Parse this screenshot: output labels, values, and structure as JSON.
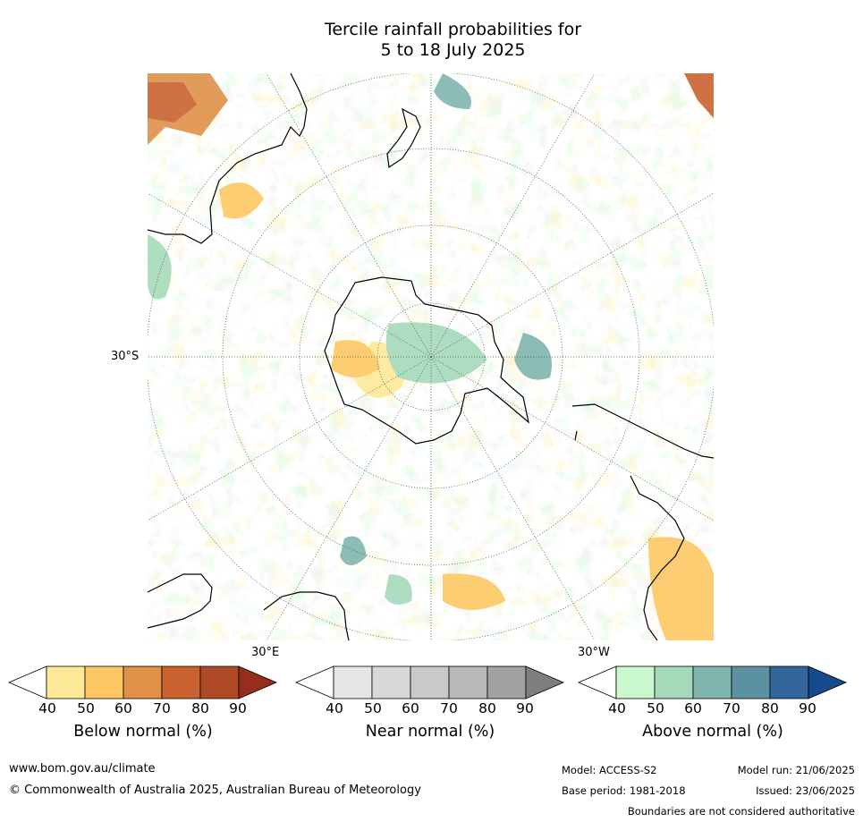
{
  "title": {
    "line1": "Tercile rainfall probabilities for",
    "line2": "5 to 18 July 2025"
  },
  "map": {
    "lat_label": "30°S",
    "lon_labels": {
      "east": "30°E",
      "west": "30°W"
    }
  },
  "colorbars": [
    {
      "label": "Below normal (%)",
      "ticks": [
        "40",
        "50",
        "60",
        "70",
        "80",
        "90"
      ],
      "colors": [
        "#ffffff",
        "#fee999",
        "#fdc863",
        "#df914a",
        "#c9622f",
        "#af4a27",
        "#962e1c"
      ]
    },
    {
      "label": "Near normal (%)",
      "ticks": [
        "40",
        "50",
        "60",
        "70",
        "80",
        "90"
      ],
      "colors": [
        "#ffffff",
        "#e5e5e5",
        "#d8d8d8",
        "#c9c9c9",
        "#b8b8b8",
        "#a2a2a2",
        "#7e7e7e"
      ]
    },
    {
      "label": "Above normal (%)",
      "ticks": [
        "40",
        "50",
        "60",
        "70",
        "80",
        "90"
      ],
      "colors": [
        "#ffffff",
        "#c8f8cc",
        "#a6d9ba",
        "#80b5ad",
        "#5b91a0",
        "#34659b",
        "#154a8b"
      ]
    }
  ],
  "footer": {
    "website": "www.bom.gov.au/climate",
    "copyright": "© Commonwealth of Australia 2025, Australian Bureau of Meteorology",
    "model": "Model: ACCESS-S2",
    "base_period": "Base period: 1981-2018",
    "model_run": "Model run: 21/06/2025",
    "issued": "Issued: 23/06/2025",
    "disclaimer": "Boundaries are not considered authoritative"
  }
}
